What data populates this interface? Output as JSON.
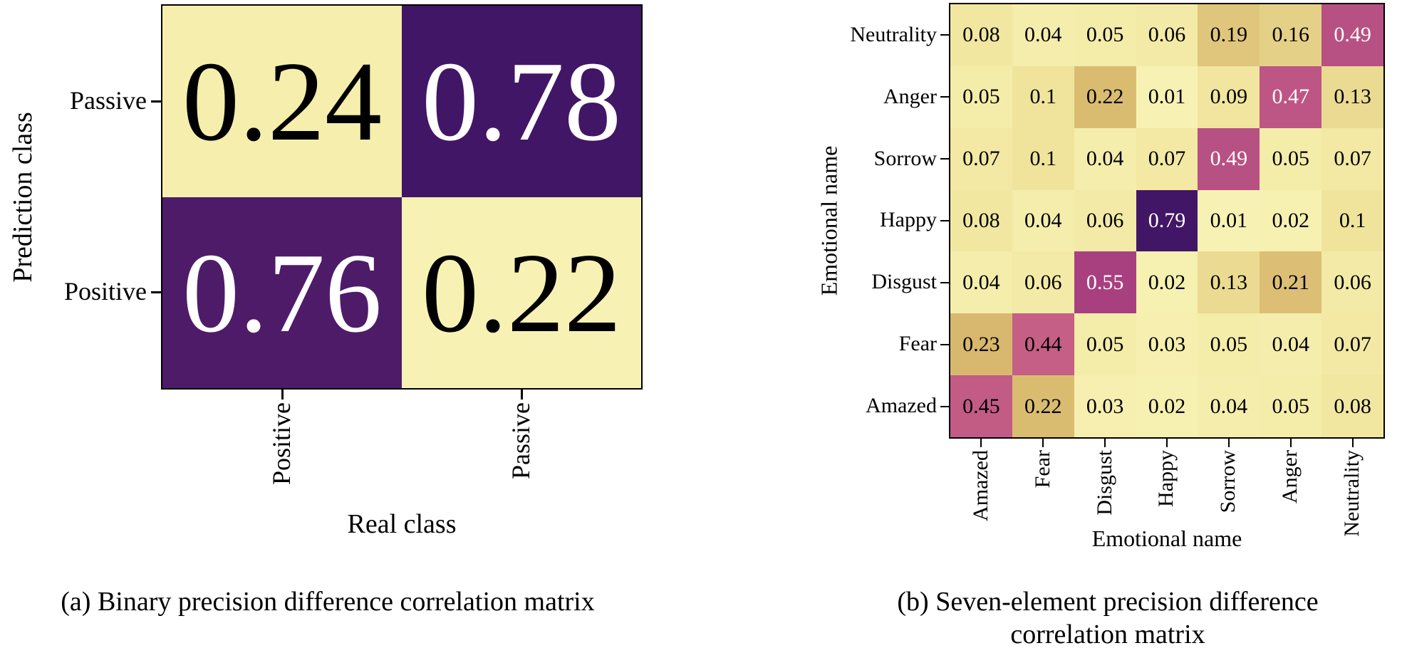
{
  "style": {
    "background": "#ffffff",
    "axis_color": "#000000",
    "cell_text_dark": "#000000",
    "cell_text_light": "#ffffff",
    "text_flip_threshold": 0.58,
    "colormap_stops": [
      {
        "t": 0.0,
        "rgb": [
          247,
          242,
          180
        ]
      },
      {
        "t": 0.12,
        "rgb": [
          240,
          227,
          155
        ]
      },
      {
        "t": 0.28,
        "rgb": [
          216,
          185,
          110
        ]
      },
      {
        "t": 0.45,
        "rgb": [
          206,
          130,
          120
        ]
      },
      {
        "t": 0.55,
        "rgb": [
          197,
          95,
          133
        ]
      },
      {
        "t": 0.7,
        "rgb": [
          166,
          62,
          128
        ]
      },
      {
        "t": 1.0,
        "rgb": [
          66,
          22,
          102
        ]
      }
    ]
  },
  "chart_data": [
    {
      "type": "heatmap",
      "title": "",
      "xlabel": "Real class",
      "ylabel": "Prediction class",
      "x_categories": [
        "Positive",
        "Passive"
      ],
      "y_categories": [
        "Passive",
        "Positive"
      ],
      "values": [
        [
          0.24,
          0.78
        ],
        [
          0.76,
          0.22
        ]
      ],
      "vmin": 0.22,
      "vmax": 0.78,
      "legend": "none",
      "grid": "off",
      "caption_lines": [
        "(a) Binary precision difference correlation matrix"
      ]
    },
    {
      "type": "heatmap",
      "title": "",
      "xlabel": "Emotional name",
      "ylabel": "Emotional name",
      "x_categories": [
        "Amazed",
        "Fear",
        "Disgust",
        "Happy",
        "Sorrow",
        "Anger",
        "Neutrality"
      ],
      "y_categories": [
        "Neutrality",
        "Anger",
        "Sorrow",
        "Happy",
        "Disgust",
        "Fear",
        "Amazed"
      ],
      "values": [
        [
          0.08,
          0.04,
          0.05,
          0.06,
          0.19,
          0.16,
          0.49
        ],
        [
          0.05,
          0.1,
          0.22,
          0.01,
          0.09,
          0.47,
          0.13
        ],
        [
          0.07,
          0.1,
          0.04,
          0.07,
          0.49,
          0.05,
          0.07
        ],
        [
          0.08,
          0.04,
          0.06,
          0.79,
          0.01,
          0.02,
          0.1
        ],
        [
          0.04,
          0.06,
          0.55,
          0.02,
          0.13,
          0.21,
          0.06
        ],
        [
          0.23,
          0.44,
          0.05,
          0.03,
          0.05,
          0.04,
          0.07
        ],
        [
          0.45,
          0.22,
          0.03,
          0.02,
          0.04,
          0.05,
          0.08
        ]
      ],
      "vmin": 0.01,
      "vmax": 0.79,
      "legend": "none",
      "grid": "off",
      "caption_lines": [
        "(b) Seven-element precision difference",
        "correlation matrix"
      ]
    }
  ]
}
